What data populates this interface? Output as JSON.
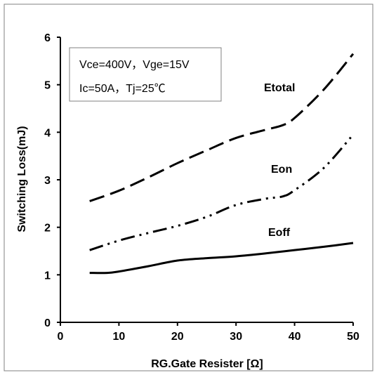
{
  "chart_data": {
    "type": "line",
    "title": "",
    "xlabel": "RG.Gate Resister [Ω]",
    "ylabel": "Switching Loss(mJ)",
    "xlim": [
      0,
      50
    ],
    "ylim": [
      0,
      6
    ],
    "xticks": [
      "0",
      "10",
      "20",
      "30",
      "40",
      "50"
    ],
    "yticks": [
      "0",
      "1",
      "2",
      "3",
      "4",
      "5",
      "6"
    ],
    "grid": false,
    "conditions": [
      "Vce=400V，Vge=15V",
      "Ic=50A，Tj=25℃"
    ],
    "series": [
      {
        "name": "Etotal",
        "style": "dashed",
        "x": [
          5,
          10,
          15,
          20,
          25,
          30,
          35,
          38,
          40,
          45,
          50
        ],
        "y": [
          2.55,
          2.77,
          3.05,
          3.35,
          3.62,
          3.88,
          4.05,
          4.15,
          4.3,
          4.9,
          5.65
        ]
      },
      {
        "name": "Eon",
        "style": "dash-dot-dot",
        "x": [
          5,
          10,
          15,
          20,
          25,
          30,
          35,
          38,
          40,
          45,
          50
        ],
        "y": [
          1.52,
          1.72,
          1.88,
          2.03,
          2.22,
          2.47,
          2.6,
          2.65,
          2.78,
          3.25,
          3.95
        ]
      },
      {
        "name": "Eoff",
        "style": "solid",
        "x": [
          5,
          8,
          10,
          15,
          20,
          25,
          30,
          35,
          40,
          45,
          50
        ],
        "y": [
          1.04,
          1.04,
          1.07,
          1.18,
          1.3,
          1.35,
          1.39,
          1.45,
          1.52,
          1.59,
          1.67
        ]
      }
    ],
    "colors": {
      "lines": "#000000",
      "axes": "#000000",
      "frame": "#808080"
    }
  }
}
